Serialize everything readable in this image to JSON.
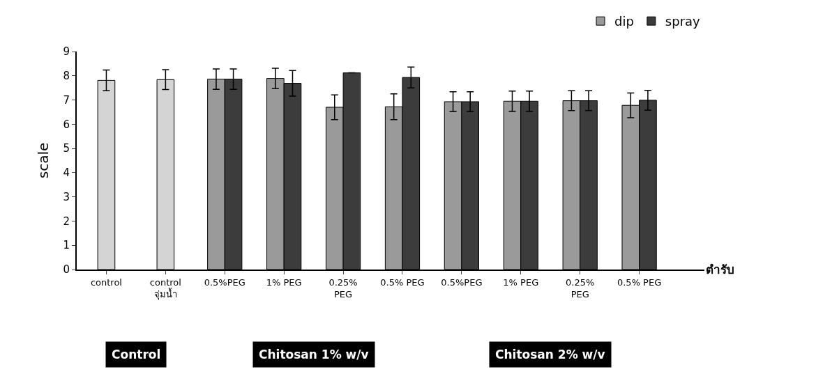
{
  "chart_data": {
    "type": "bar",
    "ylabel": "scale",
    "xlabel": "ตำรับ",
    "categories": [
      "control",
      "control\nจุ่มน้ำ",
      "0.5%PEG",
      "1% PEG",
      "0.25%\nPEG",
      "0.5% PEG",
      "0.5%PEG",
      "1% PEG",
      "0.25%\nPEG",
      "0.5% PEG"
    ],
    "series": [
      {
        "color": "#d4d4d4",
        "values": [
          7.81,
          7.84,
          null,
          null,
          null,
          null,
          null,
          null,
          null,
          null
        ],
        "errors": [
          0.43,
          0.41,
          null,
          null,
          null,
          null,
          null,
          null,
          null,
          null
        ]
      },
      {
        "name": "dip",
        "color": "#9a9a9a",
        "values": [
          null,
          null,
          7.86,
          7.89,
          6.7,
          6.72,
          6.93,
          6.95,
          6.97,
          6.78
        ],
        "errors": [
          null,
          null,
          0.42,
          0.42,
          0.51,
          0.53,
          0.41,
          0.42,
          0.41,
          0.51
        ]
      },
      {
        "name": "spray",
        "color": "#3c3c3c",
        "values": [
          null,
          null,
          7.86,
          7.69,
          8.12,
          7.93,
          6.93,
          6.95,
          6.97,
          6.99
        ],
        "errors": [
          null,
          null,
          0.42,
          0.53,
          null,
          0.43,
          0.41,
          0.42,
          0.41,
          0.41
        ]
      }
    ],
    "ylim": [
      0,
      9
    ],
    "yticks": [
      0,
      1,
      2,
      3,
      4,
      5,
      6,
      7,
      8,
      9
    ],
    "legend": "top right",
    "annotations": [
      "Control",
      "Chitosan 1% w/v",
      "Chitosan 2% w/v"
    ]
  }
}
